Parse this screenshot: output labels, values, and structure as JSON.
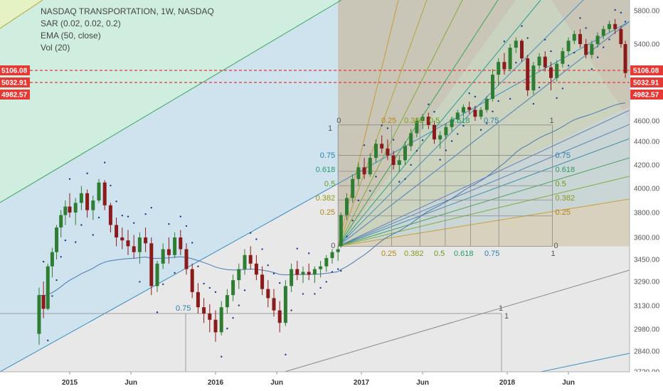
{
  "chart_data": {
    "type": "candlestick",
    "title": "NASDAQ TRANSPORTATION, 1W, NASDAQ",
    "indicators": [
      "SAR (0.02, 0.02, 0.2)",
      "EMA (50, close)",
      "Vol (20)"
    ],
    "yticks": [
      2720,
      2840,
      2980,
      3130,
      3290,
      3450,
      3600,
      3800,
      4000,
      4200,
      4400,
      4600,
      5400,
      5800
    ],
    "xticks": [
      {
        "label": "2015",
        "x": 2015.0
      },
      {
        "label": "Jun",
        "x": 2015.42
      },
      {
        "label": "2016",
        "x": 2016.0
      },
      {
        "label": "Jun",
        "x": 2016.42
      },
      {
        "label": "2017",
        "x": 2017.0
      },
      {
        "label": "Jun",
        "x": 2017.42
      },
      {
        "label": "2018",
        "x": 2018.0
      },
      {
        "label": "Jun",
        "x": 2018.42
      }
    ],
    "price_tags": [
      {
        "label": "5106.08",
        "value": 5106.08,
        "color": "#e53935"
      },
      {
        "label": "5032.91",
        "value": 5032.91,
        "color": "#e53935"
      },
      {
        "label": "4982.57",
        "value": 4982.57,
        "color": "#e53935"
      }
    ],
    "horizontal_lines": [
      5106.08,
      5032.91
    ],
    "gann_box": {
      "start_x": 2016.84,
      "end_x": 2018.31,
      "low": 3540,
      "high": 4560
    },
    "fan_left_labels": [
      "0.75",
      "0.618",
      "0.5",
      "0.382",
      "0.25"
    ],
    "fan_right_labels": [
      "0.75",
      "0.618",
      "0.5",
      "0.382",
      "0.25"
    ],
    "fan_top_labels": [
      "0",
      "0.25",
      "0.382",
      "0.5",
      "0.618",
      "0.75",
      "1",
      "1"
    ],
    "fan_bottom_labels": [
      "0.25",
      "0.382",
      "0.5",
      "0.618",
      "0.75",
      "1",
      "0"
    ],
    "lower_box_labels": [
      "0.75",
      "1",
      "1"
    ],
    "candles": [
      {
        "x": 2014.79,
        "o": 2950,
        "h": 3250,
        "l": 2880,
        "c": 3200
      },
      {
        "x": 2014.82,
        "o": 3200,
        "h": 3290,
        "l": 3050,
        "c": 3110
      },
      {
        "x": 2014.85,
        "o": 3110,
        "h": 3420,
        "l": 3100,
        "c": 3400
      },
      {
        "x": 2014.88,
        "o": 3400,
        "h": 3530,
        "l": 3320,
        "c": 3500
      },
      {
        "x": 2014.91,
        "o": 3500,
        "h": 3700,
        "l": 3450,
        "c": 3680
      },
      {
        "x": 2014.94,
        "o": 3680,
        "h": 3820,
        "l": 3600,
        "c": 3780
      },
      {
        "x": 2014.97,
        "o": 3780,
        "h": 3900,
        "l": 3700,
        "c": 3850
      },
      {
        "x": 2015.0,
        "o": 3850,
        "h": 3960,
        "l": 3760,
        "c": 3800
      },
      {
        "x": 2015.04,
        "o": 3800,
        "h": 3920,
        "l": 3700,
        "c": 3880
      },
      {
        "x": 2015.08,
        "o": 3880,
        "h": 4020,
        "l": 3820,
        "c": 3960
      },
      {
        "x": 2015.12,
        "o": 3960,
        "h": 3990,
        "l": 3760,
        "c": 3820
      },
      {
        "x": 2015.16,
        "o": 3820,
        "h": 3940,
        "l": 3740,
        "c": 3900
      },
      {
        "x": 2015.2,
        "o": 3900,
        "h": 4080,
        "l": 3880,
        "c": 4050
      },
      {
        "x": 2015.24,
        "o": 4050,
        "h": 4070,
        "l": 3820,
        "c": 3860
      },
      {
        "x": 2015.28,
        "o": 3860,
        "h": 3880,
        "l": 3640,
        "c": 3700
      },
      {
        "x": 2015.32,
        "o": 3700,
        "h": 3760,
        "l": 3540,
        "c": 3600
      },
      {
        "x": 2015.36,
        "o": 3600,
        "h": 3680,
        "l": 3520,
        "c": 3580
      },
      {
        "x": 2015.4,
        "o": 3580,
        "h": 3660,
        "l": 3480,
        "c": 3540
      },
      {
        "x": 2015.44,
        "o": 3540,
        "h": 3620,
        "l": 3460,
        "c": 3500
      },
      {
        "x": 2015.48,
        "o": 3500,
        "h": 3640,
        "l": 3420,
        "c": 3600
      },
      {
        "x": 2015.52,
        "o": 3600,
        "h": 3680,
        "l": 3500,
        "c": 3560
      },
      {
        "x": 2015.56,
        "o": 3560,
        "h": 3600,
        "l": 3200,
        "c": 3260
      },
      {
        "x": 2015.6,
        "o": 3260,
        "h": 3440,
        "l": 3220,
        "c": 3420
      },
      {
        "x": 2015.64,
        "o": 3420,
        "h": 3560,
        "l": 3380,
        "c": 3520
      },
      {
        "x": 2015.68,
        "o": 3520,
        "h": 3600,
        "l": 3420,
        "c": 3480
      },
      {
        "x": 2015.72,
        "o": 3480,
        "h": 3640,
        "l": 3460,
        "c": 3600
      },
      {
        "x": 2015.76,
        "o": 3600,
        "h": 3660,
        "l": 3480,
        "c": 3520
      },
      {
        "x": 2015.8,
        "o": 3520,
        "h": 3560,
        "l": 3340,
        "c": 3380
      },
      {
        "x": 2015.84,
        "o": 3380,
        "h": 3420,
        "l": 3180,
        "c": 3220
      },
      {
        "x": 2015.88,
        "o": 3220,
        "h": 3280,
        "l": 3080,
        "c": 3120
      },
      {
        "x": 2015.92,
        "o": 3120,
        "h": 3180,
        "l": 3020,
        "c": 3080
      },
      {
        "x": 2015.96,
        "o": 3080,
        "h": 3140,
        "l": 2960,
        "c": 3040
      },
      {
        "x": 2016.0,
        "o": 3040,
        "h": 3100,
        "l": 2900,
        "c": 2960
      },
      {
        "x": 2016.04,
        "o": 2960,
        "h": 3160,
        "l": 2940,
        "c": 3120
      },
      {
        "x": 2016.08,
        "o": 3120,
        "h": 3240,
        "l": 3080,
        "c": 3200
      },
      {
        "x": 2016.12,
        "o": 3200,
        "h": 3340,
        "l": 3160,
        "c": 3300
      },
      {
        "x": 2016.16,
        "o": 3300,
        "h": 3420,
        "l": 3240,
        "c": 3380
      },
      {
        "x": 2016.2,
        "o": 3380,
        "h": 3520,
        "l": 3340,
        "c": 3480
      },
      {
        "x": 2016.24,
        "o": 3480,
        "h": 3540,
        "l": 3380,
        "c": 3420
      },
      {
        "x": 2016.28,
        "o": 3420,
        "h": 3480,
        "l": 3300,
        "c": 3340
      },
      {
        "x": 2016.32,
        "o": 3340,
        "h": 3400,
        "l": 3200,
        "c": 3240
      },
      {
        "x": 2016.36,
        "o": 3240,
        "h": 3300,
        "l": 3120,
        "c": 3180
      },
      {
        "x": 2016.4,
        "o": 3180,
        "h": 3240,
        "l": 3060,
        "c": 3100
      },
      {
        "x": 2016.44,
        "o": 3100,
        "h": 3160,
        "l": 2960,
        "c": 3020
      },
      {
        "x": 2016.48,
        "o": 3020,
        "h": 3300,
        "l": 3000,
        "c": 3260
      },
      {
        "x": 2016.52,
        "o": 3260,
        "h": 3420,
        "l": 3220,
        "c": 3380
      },
      {
        "x": 2016.56,
        "o": 3380,
        "h": 3440,
        "l": 3300,
        "c": 3340
      },
      {
        "x": 2016.6,
        "o": 3340,
        "h": 3400,
        "l": 3280,
        "c": 3360
      },
      {
        "x": 2016.64,
        "o": 3360,
        "h": 3420,
        "l": 3300,
        "c": 3340
      },
      {
        "x": 2016.68,
        "o": 3340,
        "h": 3400,
        "l": 3280,
        "c": 3380
      },
      {
        "x": 2016.72,
        "o": 3380,
        "h": 3440,
        "l": 3320,
        "c": 3400
      },
      {
        "x": 2016.76,
        "o": 3400,
        "h": 3480,
        "l": 3360,
        "c": 3460
      },
      {
        "x": 2016.8,
        "o": 3460,
        "h": 3520,
        "l": 3420,
        "c": 3500
      },
      {
        "x": 2016.84,
        "o": 3500,
        "h": 3540,
        "l": 3440,
        "c": 3520
      },
      {
        "x": 2016.86,
        "o": 3540,
        "h": 3800,
        "l": 3530,
        "c": 3780
      },
      {
        "x": 2016.9,
        "o": 3780,
        "h": 3960,
        "l": 3740,
        "c": 3920
      },
      {
        "x": 2016.94,
        "o": 3920,
        "h": 4120,
        "l": 3880,
        "c": 4080
      },
      {
        "x": 2016.98,
        "o": 4080,
        "h": 4220,
        "l": 4020,
        "c": 4180
      },
      {
        "x": 2017.02,
        "o": 4180,
        "h": 4260,
        "l": 4080,
        "c": 4120
      },
      {
        "x": 2017.06,
        "o": 4120,
        "h": 4300,
        "l": 4100,
        "c": 4260
      },
      {
        "x": 2017.1,
        "o": 4260,
        "h": 4420,
        "l": 4220,
        "c": 4380
      },
      {
        "x": 2017.14,
        "o": 4380,
        "h": 4460,
        "l": 4300,
        "c": 4340
      },
      {
        "x": 2017.18,
        "o": 4340,
        "h": 4420,
        "l": 4240,
        "c": 4280
      },
      {
        "x": 2017.22,
        "o": 4280,
        "h": 4320,
        "l": 4160,
        "c": 4200
      },
      {
        "x": 2017.26,
        "o": 4200,
        "h": 4280,
        "l": 4140,
        "c": 4240
      },
      {
        "x": 2017.3,
        "o": 4240,
        "h": 4400,
        "l": 4200,
        "c": 4360
      },
      {
        "x": 2017.34,
        "o": 4360,
        "h": 4520,
        "l": 4320,
        "c": 4480
      },
      {
        "x": 2017.38,
        "o": 4480,
        "h": 4640,
        "l": 4440,
        "c": 4600
      },
      {
        "x": 2017.42,
        "o": 4600,
        "h": 4700,
        "l": 4520,
        "c": 4660
      },
      {
        "x": 2017.46,
        "o": 4660,
        "h": 4720,
        "l": 4520,
        "c": 4560
      },
      {
        "x": 2017.5,
        "o": 4560,
        "h": 4600,
        "l": 4380,
        "c": 4420
      },
      {
        "x": 2017.54,
        "o": 4420,
        "h": 4500,
        "l": 4340,
        "c": 4460
      },
      {
        "x": 2017.58,
        "o": 4460,
        "h": 4580,
        "l": 4420,
        "c": 4540
      },
      {
        "x": 2017.62,
        "o": 4540,
        "h": 4660,
        "l": 4500,
        "c": 4620
      },
      {
        "x": 2017.66,
        "o": 4620,
        "h": 4760,
        "l": 4580,
        "c": 4720
      },
      {
        "x": 2017.7,
        "o": 4720,
        "h": 4840,
        "l": 4660,
        "c": 4800
      },
      {
        "x": 2017.74,
        "o": 4800,
        "h": 4880,
        "l": 4700,
        "c": 4760
      },
      {
        "x": 2017.78,
        "o": 4760,
        "h": 4820,
        "l": 4600,
        "c": 4660
      },
      {
        "x": 2017.82,
        "o": 4660,
        "h": 4800,
        "l": 4620,
        "c": 4760
      },
      {
        "x": 2017.86,
        "o": 4760,
        "h": 4960,
        "l": 4720,
        "c": 4920
      },
      {
        "x": 2017.9,
        "o": 4920,
        "h": 5120,
        "l": 4880,
        "c": 5080
      },
      {
        "x": 2017.94,
        "o": 5080,
        "h": 5240,
        "l": 5020,
        "c": 5200
      },
      {
        "x": 2017.98,
        "o": 5200,
        "h": 5300,
        "l": 5080,
        "c": 5120
      },
      {
        "x": 2018.02,
        "o": 5120,
        "h": 5400,
        "l": 5100,
        "c": 5360
      },
      {
        "x": 2018.06,
        "o": 5360,
        "h": 5480,
        "l": 5300,
        "c": 5440
      },
      {
        "x": 2018.1,
        "o": 5440,
        "h": 5460,
        "l": 5200,
        "c": 5240
      },
      {
        "x": 2018.14,
        "o": 5240,
        "h": 5280,
        "l": 4960,
        "c": 5000
      },
      {
        "x": 2018.18,
        "o": 5000,
        "h": 5200,
        "l": 4980,
        "c": 5160
      },
      {
        "x": 2018.22,
        "o": 5160,
        "h": 5300,
        "l": 5120,
        "c": 5260
      },
      {
        "x": 2018.26,
        "o": 5260,
        "h": 5320,
        "l": 5100,
        "c": 5140
      },
      {
        "x": 2018.3,
        "o": 5140,
        "h": 5200,
        "l": 5000,
        "c": 5060
      },
      {
        "x": 2018.34,
        "o": 5060,
        "h": 5220,
        "l": 5040,
        "c": 5180
      },
      {
        "x": 2018.38,
        "o": 5180,
        "h": 5360,
        "l": 5140,
        "c": 5320
      },
      {
        "x": 2018.42,
        "o": 5320,
        "h": 5480,
        "l": 5280,
        "c": 5440
      },
      {
        "x": 2018.46,
        "o": 5440,
        "h": 5560,
        "l": 5400,
        "c": 5520
      },
      {
        "x": 2018.5,
        "o": 5520,
        "h": 5580,
        "l": 5360,
        "c": 5400
      },
      {
        "x": 2018.54,
        "o": 5400,
        "h": 5460,
        "l": 5240,
        "c": 5280
      },
      {
        "x": 2018.58,
        "o": 5280,
        "h": 5440,
        "l": 5240,
        "c": 5400
      },
      {
        "x": 2018.62,
        "o": 5400,
        "h": 5540,
        "l": 5360,
        "c": 5500
      },
      {
        "x": 2018.66,
        "o": 5500,
        "h": 5620,
        "l": 5460,
        "c": 5580
      },
      {
        "x": 2018.7,
        "o": 5580,
        "h": 5680,
        "l": 5540,
        "c": 5640
      },
      {
        "x": 2018.74,
        "o": 5640,
        "h": 5700,
        "l": 5520,
        "c": 5580
      },
      {
        "x": 2018.78,
        "o": 5580,
        "h": 5620,
        "l": 5360,
        "c": 5400
      },
      {
        "x": 2018.81,
        "o": 5400,
        "h": 5440,
        "l": 5060,
        "c": 5090
      }
    ]
  }
}
